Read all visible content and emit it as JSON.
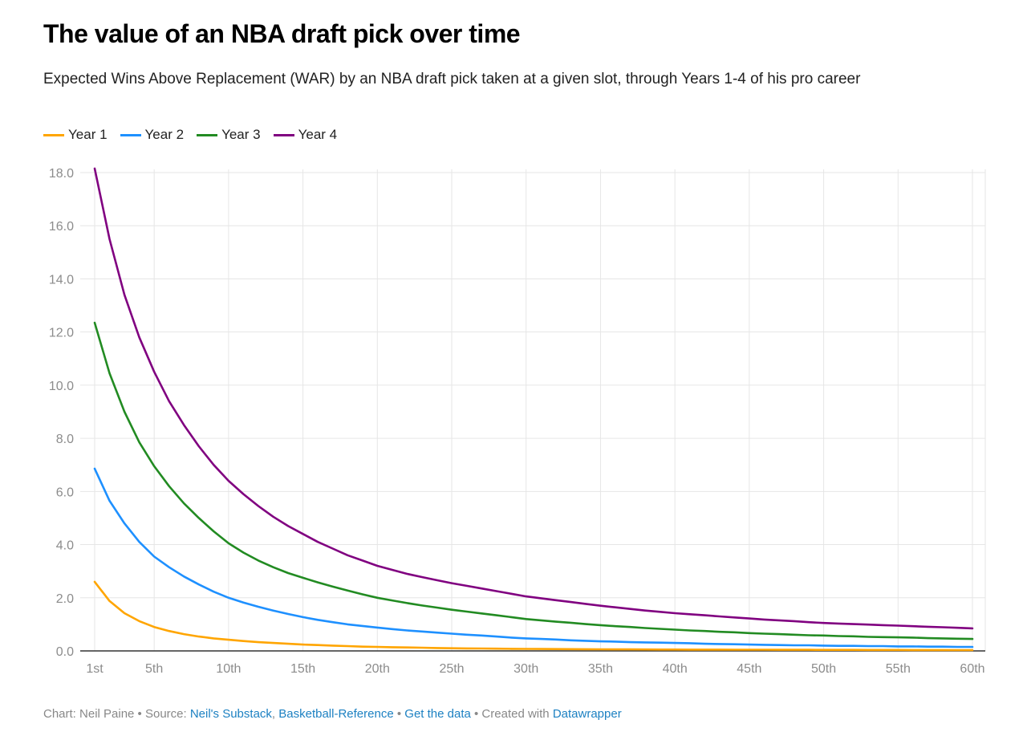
{
  "header": {
    "title": "The value of an NBA draft pick over time",
    "subtitle": "Expected Wins Above Replacement (WAR) by an NBA draft pick taken at a given slot, through Years 1-4 of his pro career"
  },
  "footer": {
    "chart_label": "Chart: Neil Paine",
    "sep1": " • Source: ",
    "source_link_1": "Neil's Substack",
    "comma": ", ",
    "source_link_2": "Basketball-Reference",
    "sep2": " • ",
    "get_data_link": "Get the data",
    "sep3": " • Created with ",
    "datawrapper_link": "Datawrapper"
  },
  "chart_data": {
    "type": "line",
    "title": "The value of an NBA draft pick over time",
    "xlabel": "",
    "ylabel": "",
    "x": [
      1,
      2,
      3,
      4,
      5,
      6,
      7,
      8,
      9,
      10,
      11,
      12,
      13,
      14,
      15,
      16,
      17,
      18,
      19,
      20,
      21,
      22,
      23,
      24,
      25,
      26,
      27,
      28,
      29,
      30,
      31,
      32,
      33,
      34,
      35,
      36,
      37,
      38,
      39,
      40,
      41,
      42,
      43,
      44,
      45,
      46,
      47,
      48,
      49,
      50,
      51,
      52,
      53,
      54,
      55,
      56,
      57,
      58,
      59,
      60
    ],
    "xlim": [
      1,
      60
    ],
    "ylim": [
      0,
      18
    ],
    "x_ticks": [
      {
        "value": 1,
        "label": "1st"
      },
      {
        "value": 5,
        "label": "5th"
      },
      {
        "value": 10,
        "label": "10th"
      },
      {
        "value": 15,
        "label": "15th"
      },
      {
        "value": 20,
        "label": "20th"
      },
      {
        "value": 25,
        "label": "25th"
      },
      {
        "value": 30,
        "label": "30th"
      },
      {
        "value": 35,
        "label": "35th"
      },
      {
        "value": 40,
        "label": "40th"
      },
      {
        "value": 45,
        "label": "45th"
      },
      {
        "value": 50,
        "label": "50th"
      },
      {
        "value": 55,
        "label": "55th"
      },
      {
        "value": 60,
        "label": "60th"
      }
    ],
    "y_ticks": [
      {
        "value": 0,
        "label": "0.0"
      },
      {
        "value": 2,
        "label": "2.0"
      },
      {
        "value": 4,
        "label": "4.0"
      },
      {
        "value": 6,
        "label": "6.0"
      },
      {
        "value": 8,
        "label": "8.0"
      },
      {
        "value": 10,
        "label": "10.0"
      },
      {
        "value": 12,
        "label": "12.0"
      },
      {
        "value": 14,
        "label": "14.0"
      },
      {
        "value": 16,
        "label": "16.0"
      },
      {
        "value": 18,
        "label": "18.0"
      }
    ],
    "grid": true,
    "legend_position": "top-left",
    "series": [
      {
        "name": "Year 1",
        "color": "#ffa500",
        "values": [
          2.6,
          1.88,
          1.42,
          1.12,
          0.9,
          0.75,
          0.63,
          0.54,
          0.47,
          0.42,
          0.37,
          0.33,
          0.3,
          0.27,
          0.24,
          0.22,
          0.2,
          0.18,
          0.16,
          0.15,
          0.14,
          0.13,
          0.12,
          0.11,
          0.1,
          0.095,
          0.09,
          0.085,
          0.08,
          0.075,
          0.072,
          0.069,
          0.066,
          0.063,
          0.06,
          0.058,
          0.056,
          0.054,
          0.052,
          0.05,
          0.049,
          0.048,
          0.047,
          0.046,
          0.045,
          0.044,
          0.043,
          0.042,
          0.041,
          0.04,
          0.039,
          0.038,
          0.037,
          0.036,
          0.035,
          0.034,
          0.033,
          0.032,
          0.031,
          0.03
        ]
      },
      {
        "name": "Year 2",
        "color": "#1e90ff",
        "values": [
          6.86,
          5.65,
          4.8,
          4.1,
          3.55,
          3.15,
          2.8,
          2.5,
          2.23,
          2.0,
          1.82,
          1.66,
          1.52,
          1.39,
          1.27,
          1.17,
          1.08,
          1.0,
          0.94,
          0.88,
          0.82,
          0.77,
          0.73,
          0.69,
          0.65,
          0.61,
          0.58,
          0.54,
          0.5,
          0.47,
          0.45,
          0.43,
          0.4,
          0.38,
          0.36,
          0.35,
          0.33,
          0.32,
          0.31,
          0.3,
          0.29,
          0.27,
          0.26,
          0.25,
          0.24,
          0.23,
          0.22,
          0.21,
          0.21,
          0.2,
          0.19,
          0.19,
          0.18,
          0.18,
          0.17,
          0.17,
          0.16,
          0.16,
          0.15,
          0.15
        ]
      },
      {
        "name": "Year 3",
        "color": "#228b22",
        "values": [
          12.35,
          10.45,
          9.0,
          7.85,
          6.95,
          6.2,
          5.55,
          5.0,
          4.5,
          4.05,
          3.7,
          3.4,
          3.15,
          2.93,
          2.75,
          2.58,
          2.42,
          2.27,
          2.13,
          2.0,
          1.9,
          1.8,
          1.71,
          1.63,
          1.55,
          1.48,
          1.41,
          1.34,
          1.27,
          1.2,
          1.15,
          1.1,
          1.06,
          1.01,
          0.97,
          0.93,
          0.9,
          0.86,
          0.83,
          0.8,
          0.77,
          0.75,
          0.72,
          0.7,
          0.67,
          0.65,
          0.63,
          0.61,
          0.59,
          0.58,
          0.56,
          0.55,
          0.53,
          0.52,
          0.51,
          0.5,
          0.48,
          0.47,
          0.46,
          0.45
        ]
      },
      {
        "name": "Year 4",
        "color": "#800080",
        "values": [
          18.15,
          15.5,
          13.4,
          11.8,
          10.5,
          9.4,
          8.5,
          7.7,
          7.0,
          6.4,
          5.9,
          5.45,
          5.05,
          4.7,
          4.4,
          4.1,
          3.85,
          3.6,
          3.4,
          3.2,
          3.05,
          2.9,
          2.78,
          2.66,
          2.55,
          2.45,
          2.35,
          2.25,
          2.15,
          2.05,
          1.98,
          1.91,
          1.84,
          1.77,
          1.7,
          1.64,
          1.58,
          1.52,
          1.47,
          1.42,
          1.38,
          1.34,
          1.3,
          1.26,
          1.22,
          1.18,
          1.15,
          1.12,
          1.08,
          1.05,
          1.03,
          1.01,
          0.99,
          0.97,
          0.95,
          0.93,
          0.91,
          0.89,
          0.87,
          0.85
        ]
      }
    ]
  }
}
